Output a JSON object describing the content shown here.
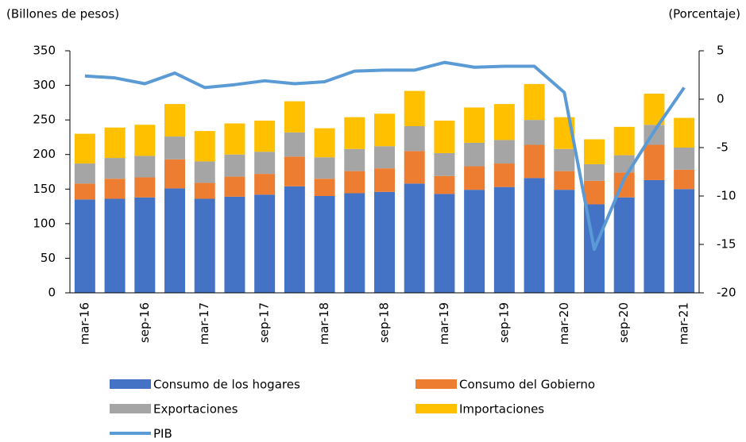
{
  "chart_data": {
    "type": "bar",
    "stacked": true,
    "y_label": "(Billones de pesos)",
    "y2_label": "(Porcentaje)",
    "categories": [
      "mar-16",
      null,
      "sep-16",
      null,
      "mar-17",
      null,
      "sep-17",
      null,
      "mar-18",
      null,
      "sep-18",
      null,
      "mar-19",
      null,
      "sep-19",
      null,
      "mar-20",
      null,
      "sep-20",
      null,
      "mar-21"
    ],
    "series": [
      {
        "name": "Consumo de los hogares",
        "color": "#4472c4",
        "values": [
          135,
          136,
          138,
          151,
          136,
          139,
          142,
          154,
          140,
          144,
          146,
          158,
          143,
          149,
          153,
          166,
          149,
          128,
          138,
          163,
          150
        ]
      },
      {
        "name": "Consumo del Gobierno",
        "color": "#ed7d31",
        "values": [
          23,
          29,
          29,
          42,
          23,
          29,
          30,
          43,
          25,
          32,
          34,
          47,
          26,
          34,
          34,
          48,
          27,
          34,
          36,
          51,
          28
        ]
      },
      {
        "name": "Exportaciones",
        "color": "#a5a5a5",
        "values": [
          29,
          30,
          31,
          33,
          31,
          32,
          32,
          35,
          31,
          32,
          32,
          36,
          33,
          34,
          34,
          36,
          32,
          24,
          25,
          29,
          32
        ]
      },
      {
        "name": "Importaciones",
        "color": "#ffc000",
        "values": [
          43,
          44,
          45,
          47,
          44,
          45,
          45,
          45,
          42,
          46,
          47,
          51,
          47,
          51,
          52,
          52,
          46,
          36,
          41,
          45,
          43
        ]
      },
      {
        "name": "PIB",
        "color": "#5b9bd5",
        "type": "line",
        "axis": "y2",
        "values": [
          2.4,
          2.2,
          1.6,
          2.7,
          1.2,
          1.5,
          1.9,
          1.6,
          1.8,
          2.9,
          3.0,
          3.0,
          3.8,
          3.3,
          3.4,
          3.4,
          0.7,
          -15.5,
          -8.2,
          -3.3,
          1.2
        ]
      }
    ],
    "ylim": [
      0,
      350
    ],
    "yticks": [
      0,
      50,
      100,
      150,
      200,
      250,
      300,
      350
    ],
    "y2lim": [
      -20,
      5
    ],
    "y2ticks": [
      -20,
      -15,
      -10,
      -5,
      0,
      5
    ]
  }
}
